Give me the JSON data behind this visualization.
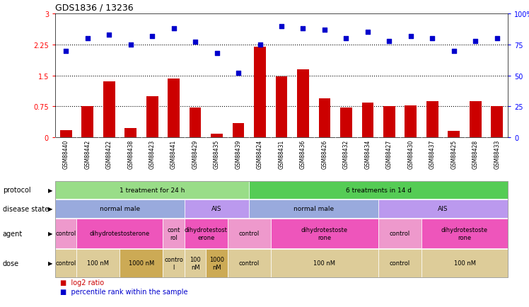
{
  "title": "GDS1836 / 13236",
  "samples": [
    "GSM88440",
    "GSM88442",
    "GSM88422",
    "GSM88438",
    "GSM88423",
    "GSM88441",
    "GSM88429",
    "GSM88435",
    "GSM88439",
    "GSM88424",
    "GSM88431",
    "GSM88436",
    "GSM88426",
    "GSM88432",
    "GSM88434",
    "GSM88427",
    "GSM88430",
    "GSM88437",
    "GSM88425",
    "GSM88428",
    "GSM88433"
  ],
  "log2_ratio": [
    0.18,
    0.75,
    1.35,
    0.22,
    1.0,
    1.42,
    0.72,
    0.08,
    0.35,
    2.2,
    1.47,
    1.65,
    0.95,
    0.72,
    0.84,
    0.75,
    0.78,
    0.87,
    0.15,
    0.88,
    0.75
  ],
  "percentile": [
    70,
    80,
    83,
    75,
    82,
    88,
    77,
    68,
    52,
    75,
    90,
    88,
    87,
    80,
    85,
    78,
    82,
    80,
    70,
    78,
    80
  ],
  "ylim_left": [
    0,
    3
  ],
  "ylim_right": [
    0,
    100
  ],
  "yticks_left": [
    0,
    0.75,
    1.5,
    2.25,
    3
  ],
  "yticks_right": [
    0,
    25,
    50,
    75,
    100
  ],
  "bar_color": "#cc0000",
  "dot_color": "#0000cc",
  "hline_values": [
    0.75,
    1.5,
    2.25
  ],
  "protocol_groups": [
    {
      "label": "1 treatment for 24 h",
      "start": 0,
      "end": 9,
      "color": "#99dd88"
    },
    {
      "label": "6 treatments in 14 d",
      "start": 9,
      "end": 21,
      "color": "#55cc55"
    }
  ],
  "disease_groups": [
    {
      "label": "normal male",
      "start": 0,
      "end": 6,
      "color": "#99aadd"
    },
    {
      "label": "AIS",
      "start": 6,
      "end": 9,
      "color": "#bb99ee"
    },
    {
      "label": "normal male",
      "start": 9,
      "end": 15,
      "color": "#99aadd"
    },
    {
      "label": "AIS",
      "start": 15,
      "end": 21,
      "color": "#bb99ee"
    }
  ],
  "agent_groups": [
    {
      "label": "control",
      "start": 0,
      "end": 1,
      "color": "#ee99cc"
    },
    {
      "label": "dihydrotestosterone",
      "start": 1,
      "end": 5,
      "color": "#ee55bb"
    },
    {
      "label": "cont\nrol",
      "start": 5,
      "end": 6,
      "color": "#ee99cc"
    },
    {
      "label": "dihydrotestost\nerone",
      "start": 6,
      "end": 8,
      "color": "#ee55bb"
    },
    {
      "label": "control",
      "start": 8,
      "end": 10,
      "color": "#ee99cc"
    },
    {
      "label": "dihydrotestoste\nrone",
      "start": 10,
      "end": 15,
      "color": "#ee55bb"
    },
    {
      "label": "control",
      "start": 15,
      "end": 17,
      "color": "#ee99cc"
    },
    {
      "label": "dihydrotestoste\nrone",
      "start": 17,
      "end": 21,
      "color": "#ee55bb"
    }
  ],
  "dose_groups": [
    {
      "label": "control",
      "start": 0,
      "end": 1,
      "color": "#ddcc99"
    },
    {
      "label": "100 nM",
      "start": 1,
      "end": 3,
      "color": "#ddcc99"
    },
    {
      "label": "1000 nM",
      "start": 3,
      "end": 5,
      "color": "#ccaa55"
    },
    {
      "label": "contro\nl",
      "start": 5,
      "end": 6,
      "color": "#ddcc99"
    },
    {
      "label": "100\nnM",
      "start": 6,
      "end": 7,
      "color": "#ddcc99"
    },
    {
      "label": "1000\nnM",
      "start": 7,
      "end": 8,
      "color": "#ccaa55"
    },
    {
      "label": "control",
      "start": 8,
      "end": 10,
      "color": "#ddcc99"
    },
    {
      "label": "100 nM",
      "start": 10,
      "end": 15,
      "color": "#ddcc99"
    },
    {
      "label": "control",
      "start": 15,
      "end": 17,
      "color": "#ddcc99"
    },
    {
      "label": "100 nM",
      "start": 17,
      "end": 21,
      "color": "#ddcc99"
    }
  ],
  "row_label_texts": [
    "protocol",
    "disease state",
    "agent",
    "dose"
  ],
  "chart_bg": "#ffffff",
  "xticklabel_bg": "#cccccc"
}
